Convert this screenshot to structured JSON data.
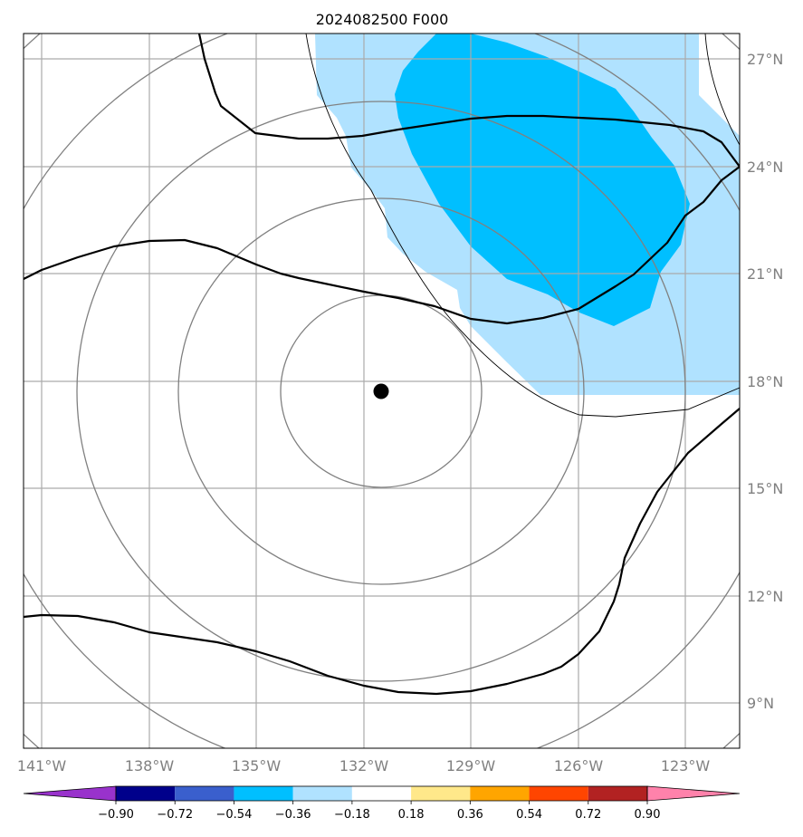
{
  "title": "2024082500 F000",
  "map": {
    "lon_range": [
      -141.5,
      -121.5
    ],
    "lat_range": [
      7.8,
      27.7
    ],
    "lon_ticks": [
      {
        "value": -141,
        "label": "141°W"
      },
      {
        "value": -138,
        "label": "138°W"
      },
      {
        "value": -135,
        "label": "135°W"
      },
      {
        "value": -132,
        "label": "132°W"
      },
      {
        "value": -129,
        "label": "129°W"
      },
      {
        "value": -126,
        "label": "126°W"
      },
      {
        "value": -123,
        "label": "123°W"
      }
    ],
    "lat_ticks": [
      {
        "value": 27,
        "label": "27°N"
      },
      {
        "value": 24,
        "label": "24°N"
      },
      {
        "value": 21,
        "label": "21°N"
      },
      {
        "value": 18,
        "label": "18°N"
      },
      {
        "value": 15,
        "label": "15°N"
      },
      {
        "value": 12,
        "label": "12°N"
      },
      {
        "value": 9,
        "label": "9°N"
      }
    ],
    "gridlines": true,
    "center_marker": {
      "lon": -131.5,
      "lat": 17.7
    }
  },
  "colorbar": {
    "boundaries": [
      "−0.90",
      "−0.72",
      "−0.54",
      "−0.36",
      "−0.18",
      "0.18",
      "0.36",
      "0.54",
      "0.72",
      "0.90"
    ],
    "colors": [
      "#9932cc",
      "#00008b",
      "#3a5fcd",
      "#00bfff",
      "#b0e2ff",
      "#ffffff",
      "#ffe88a",
      "#ffa500",
      "#ff4500",
      "#b22222",
      "#ff82ab"
    ],
    "extend": "both"
  },
  "colors": {
    "light_fill": "#b0e2ff",
    "dark_fill": "#00bfff",
    "grid": "#aaaaaa",
    "rings": "#808080",
    "contour": "#000000"
  }
}
